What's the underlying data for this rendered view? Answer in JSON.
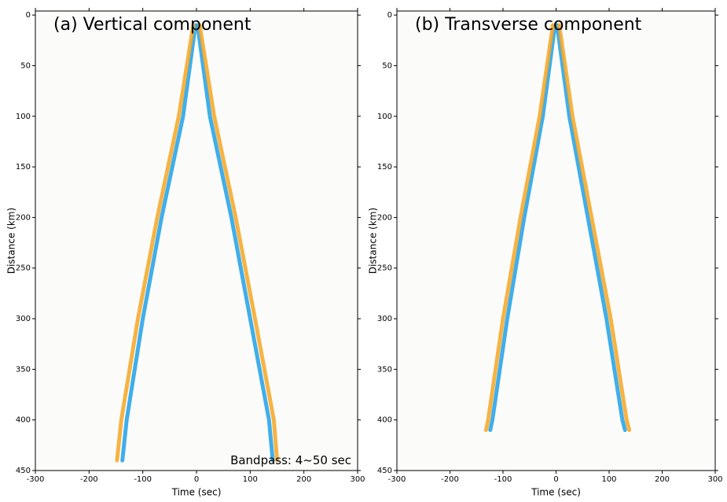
{
  "chart_data": [
    {
      "type": "line",
      "title": "(a) Vertical component",
      "annotation": "Bandpass: 4~50 sec",
      "x_label": "Time (sec)",
      "y_label": "Distance (km)",
      "xlim": [
        -300,
        300
      ],
      "xticks": [
        -300,
        -200,
        -100,
        0,
        100,
        200,
        300
      ],
      "ylim": [
        -4,
        450
      ],
      "yticks": [
        0,
        50,
        100,
        150,
        200,
        250,
        300,
        350,
        400,
        450
      ],
      "y_inverted": true,
      "series": [
        {
          "color": "#1ea0e6",
          "x": [
            -2,
            -25,
            -65,
            -100,
            -130,
            -138
          ],
          "values": [
            10,
            100,
            200,
            300,
            400,
            440
          ]
        },
        {
          "color": "#f5a623",
          "x": [
            -6,
            -33,
            -73,
            -109,
            -140,
            -148
          ],
          "values": [
            10,
            100,
            200,
            300,
            400,
            440
          ]
        },
        {
          "color": "#1ea0e6",
          "x": [
            2,
            25,
            65,
            100,
            135,
            142
          ],
          "values": [
            10,
            100,
            200,
            300,
            400,
            440
          ]
        },
        {
          "color": "#f5a623",
          "x": [
            6,
            33,
            73,
            109,
            144,
            150
          ],
          "values": [
            10,
            100,
            200,
            300,
            400,
            440
          ]
        }
      ]
    },
    {
      "type": "line",
      "title": "(b) Transverse component",
      "x_label": "Time (sec)",
      "y_label": "Distance (km)",
      "xlim": [
        -300,
        300
      ],
      "xticks": [
        -300,
        -200,
        -100,
        0,
        100,
        200,
        300
      ],
      "ylim": [
        -4,
        450
      ],
      "yticks": [
        0,
        50,
        100,
        150,
        200,
        250,
        300,
        350,
        400,
        450
      ],
      "y_inverted": true,
      "series": [
        {
          "color": "#1ea0e6",
          "x": [
            -2,
            -25,
            -60,
            -92,
            -120,
            -124
          ],
          "values": [
            10,
            100,
            200,
            300,
            400,
            410
          ]
        },
        {
          "color": "#f5a623",
          "x": [
            -6,
            -31,
            -67,
            -100,
            -128,
            -132
          ],
          "values": [
            10,
            100,
            200,
            300,
            400,
            410
          ]
        },
        {
          "color": "#1ea0e6",
          "x": [
            2,
            25,
            60,
            95,
            125,
            130
          ],
          "values": [
            10,
            100,
            200,
            300,
            400,
            410
          ]
        },
        {
          "color": "#f5a623",
          "x": [
            6,
            31,
            67,
            103,
            133,
            138
          ],
          "values": [
            10,
            100,
            200,
            300,
            400,
            410
          ]
        }
      ]
    }
  ]
}
